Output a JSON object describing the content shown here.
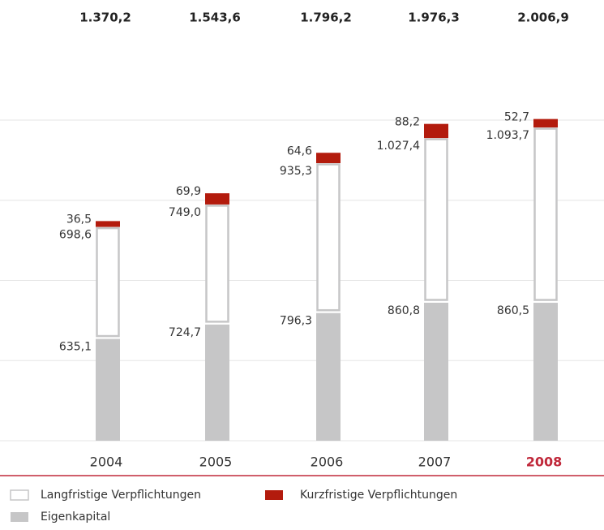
{
  "chart_data": {
    "type": "stacked_bar",
    "categories": [
      "2004",
      "2005",
      "2006",
      "2007",
      "2008"
    ],
    "totals": [
      "1.370,2",
      "1.543,6",
      "1.796,2",
      "1.976,3",
      "2.006,9"
    ],
    "series": [
      {
        "name": "Eigenkapital",
        "color": "#c6c6c7",
        "values": [
          635.1,
          724.7,
          796.3,
          860.8,
          860.5
        ],
        "value_labels": [
          "635,1",
          "724,7",
          "796,3",
          "860,8",
          "860,5"
        ]
      },
      {
        "name": "Langfristige Verpflichtungen",
        "color": "#ffffff",
        "values": [
          698.6,
          749.0,
          935.3,
          1027.4,
          1093.7
        ],
        "value_labels": [
          "698,6",
          "749,0",
          "935,3",
          "1.027,4",
          "1.093,7"
        ]
      },
      {
        "name": "Kurzfristige Verpflichtungen",
        "color": "#b31b0d",
        "values": [
          36.5,
          69.9,
          64.6,
          88.2,
          52.7
        ],
        "value_labels": [
          "36,5",
          "69,9",
          "64,6",
          "88,2",
          "52,7"
        ]
      }
    ],
    "ylim": [
      0,
      2000
    ],
    "yticks": [
      0,
      500,
      1000,
      1500,
      2000
    ],
    "grid": true,
    "highlight_index": 4,
    "highlight_color": "#c0283a"
  }
}
